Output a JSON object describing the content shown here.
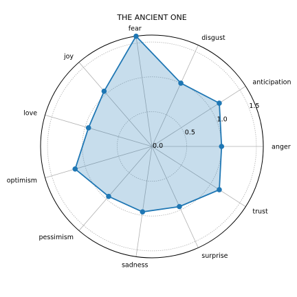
{
  "chart_data": {
    "type": "radar",
    "title": "THE ANCIENT ONE",
    "categories": [
      "anger",
      "anticipation",
      "disgust",
      "fear",
      "joy",
      "love",
      "optimism",
      "pessimism",
      "sadness",
      "surprise",
      "trust"
    ],
    "series": [
      {
        "values": [
          1.0,
          1.15,
          1.0,
          1.6,
          1.05,
          0.95,
          1.15,
          0.95,
          0.95,
          0.95,
          1.15
        ]
      }
    ],
    "rlim": [
      0,
      1.6
    ],
    "r_ticks": [
      0.0,
      0.5,
      1.0,
      1.5
    ],
    "r_tick_labels": [
      "0.0",
      "0.5",
      "1.0",
      "1.5"
    ],
    "grid": true,
    "colors": {
      "line": "#1f77b4",
      "fill": "#1f77b4",
      "fill_opacity": 0.25,
      "grid": "#b0b0b0"
    }
  }
}
